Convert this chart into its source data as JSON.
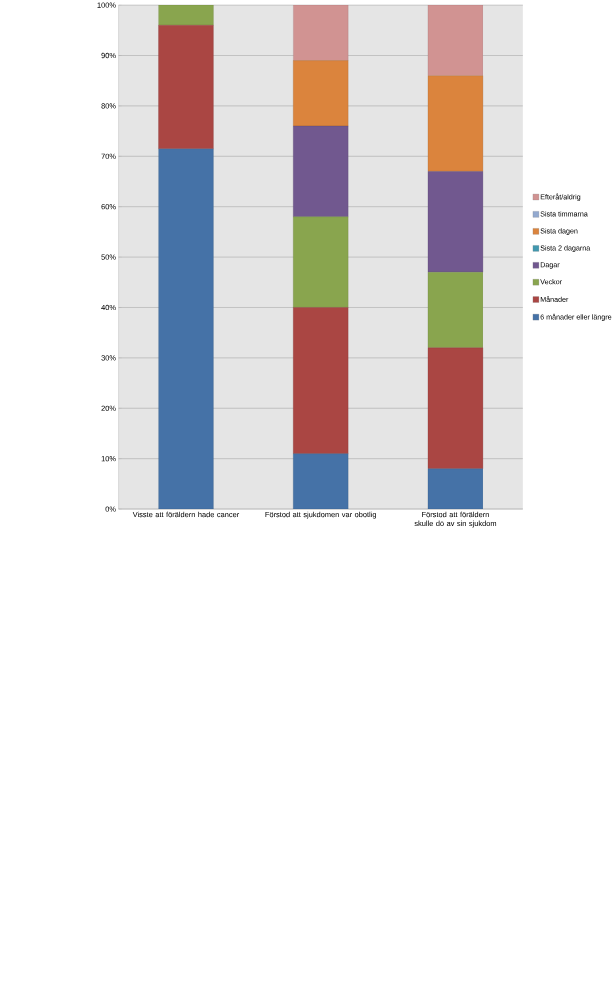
{
  "chart_data": {
    "type": "bar",
    "stacked": true,
    "grid": "y",
    "legend": "right",
    "categories": [
      "Visste att föräldern hade cancer",
      "Förstod att sjukdomen var obotlig",
      "Förstod att föräldern skulle dö av sin sjukdom"
    ],
    "series": [
      {
        "name": "6 månader eller längre",
        "color": "#4572a7",
        "values": [
          71.5,
          11,
          8
        ]
      },
      {
        "name": "Månader",
        "color": "#aa4643",
        "values": [
          24.5,
          29,
          24
        ]
      },
      {
        "name": "Veckor",
        "color": "#89a54e",
        "values": [
          4,
          18,
          15
        ]
      },
      {
        "name": "Dagar",
        "color": "#71588f",
        "values": [
          0,
          18,
          20
        ]
      },
      {
        "name": "Sista 2 dagarna",
        "color": "#4198af",
        "values": [
          0,
          0,
          0
        ]
      },
      {
        "name": "Sista dagen",
        "color": "#db843d",
        "values": [
          0,
          13,
          19
        ]
      },
      {
        "name": "Sista timmarna",
        "color": "#93a9cf",
        "values": [
          0,
          0,
          0
        ]
      },
      {
        "name": "Efteråt/aldrig",
        "color": "#d19392",
        "values": [
          0,
          11,
          14
        ]
      }
    ],
    "ylim": [
      0,
      100
    ],
    "yticks": [
      {
        "value": 0,
        "label": "0%"
      },
      {
        "value": 10,
        "label": "10%"
      },
      {
        "value": 20,
        "label": "20%"
      },
      {
        "value": 30,
        "label": "30%"
      },
      {
        "value": 40,
        "label": "40%"
      },
      {
        "value": 50,
        "label": "50%"
      },
      {
        "value": 60,
        "label": "60%"
      },
      {
        "value": 70,
        "label": "70%"
      },
      {
        "value": 80,
        "label": "80%"
      },
      {
        "value": 90,
        "label": "90%"
      },
      {
        "value": 100,
        "label": "100%"
      }
    ]
  }
}
